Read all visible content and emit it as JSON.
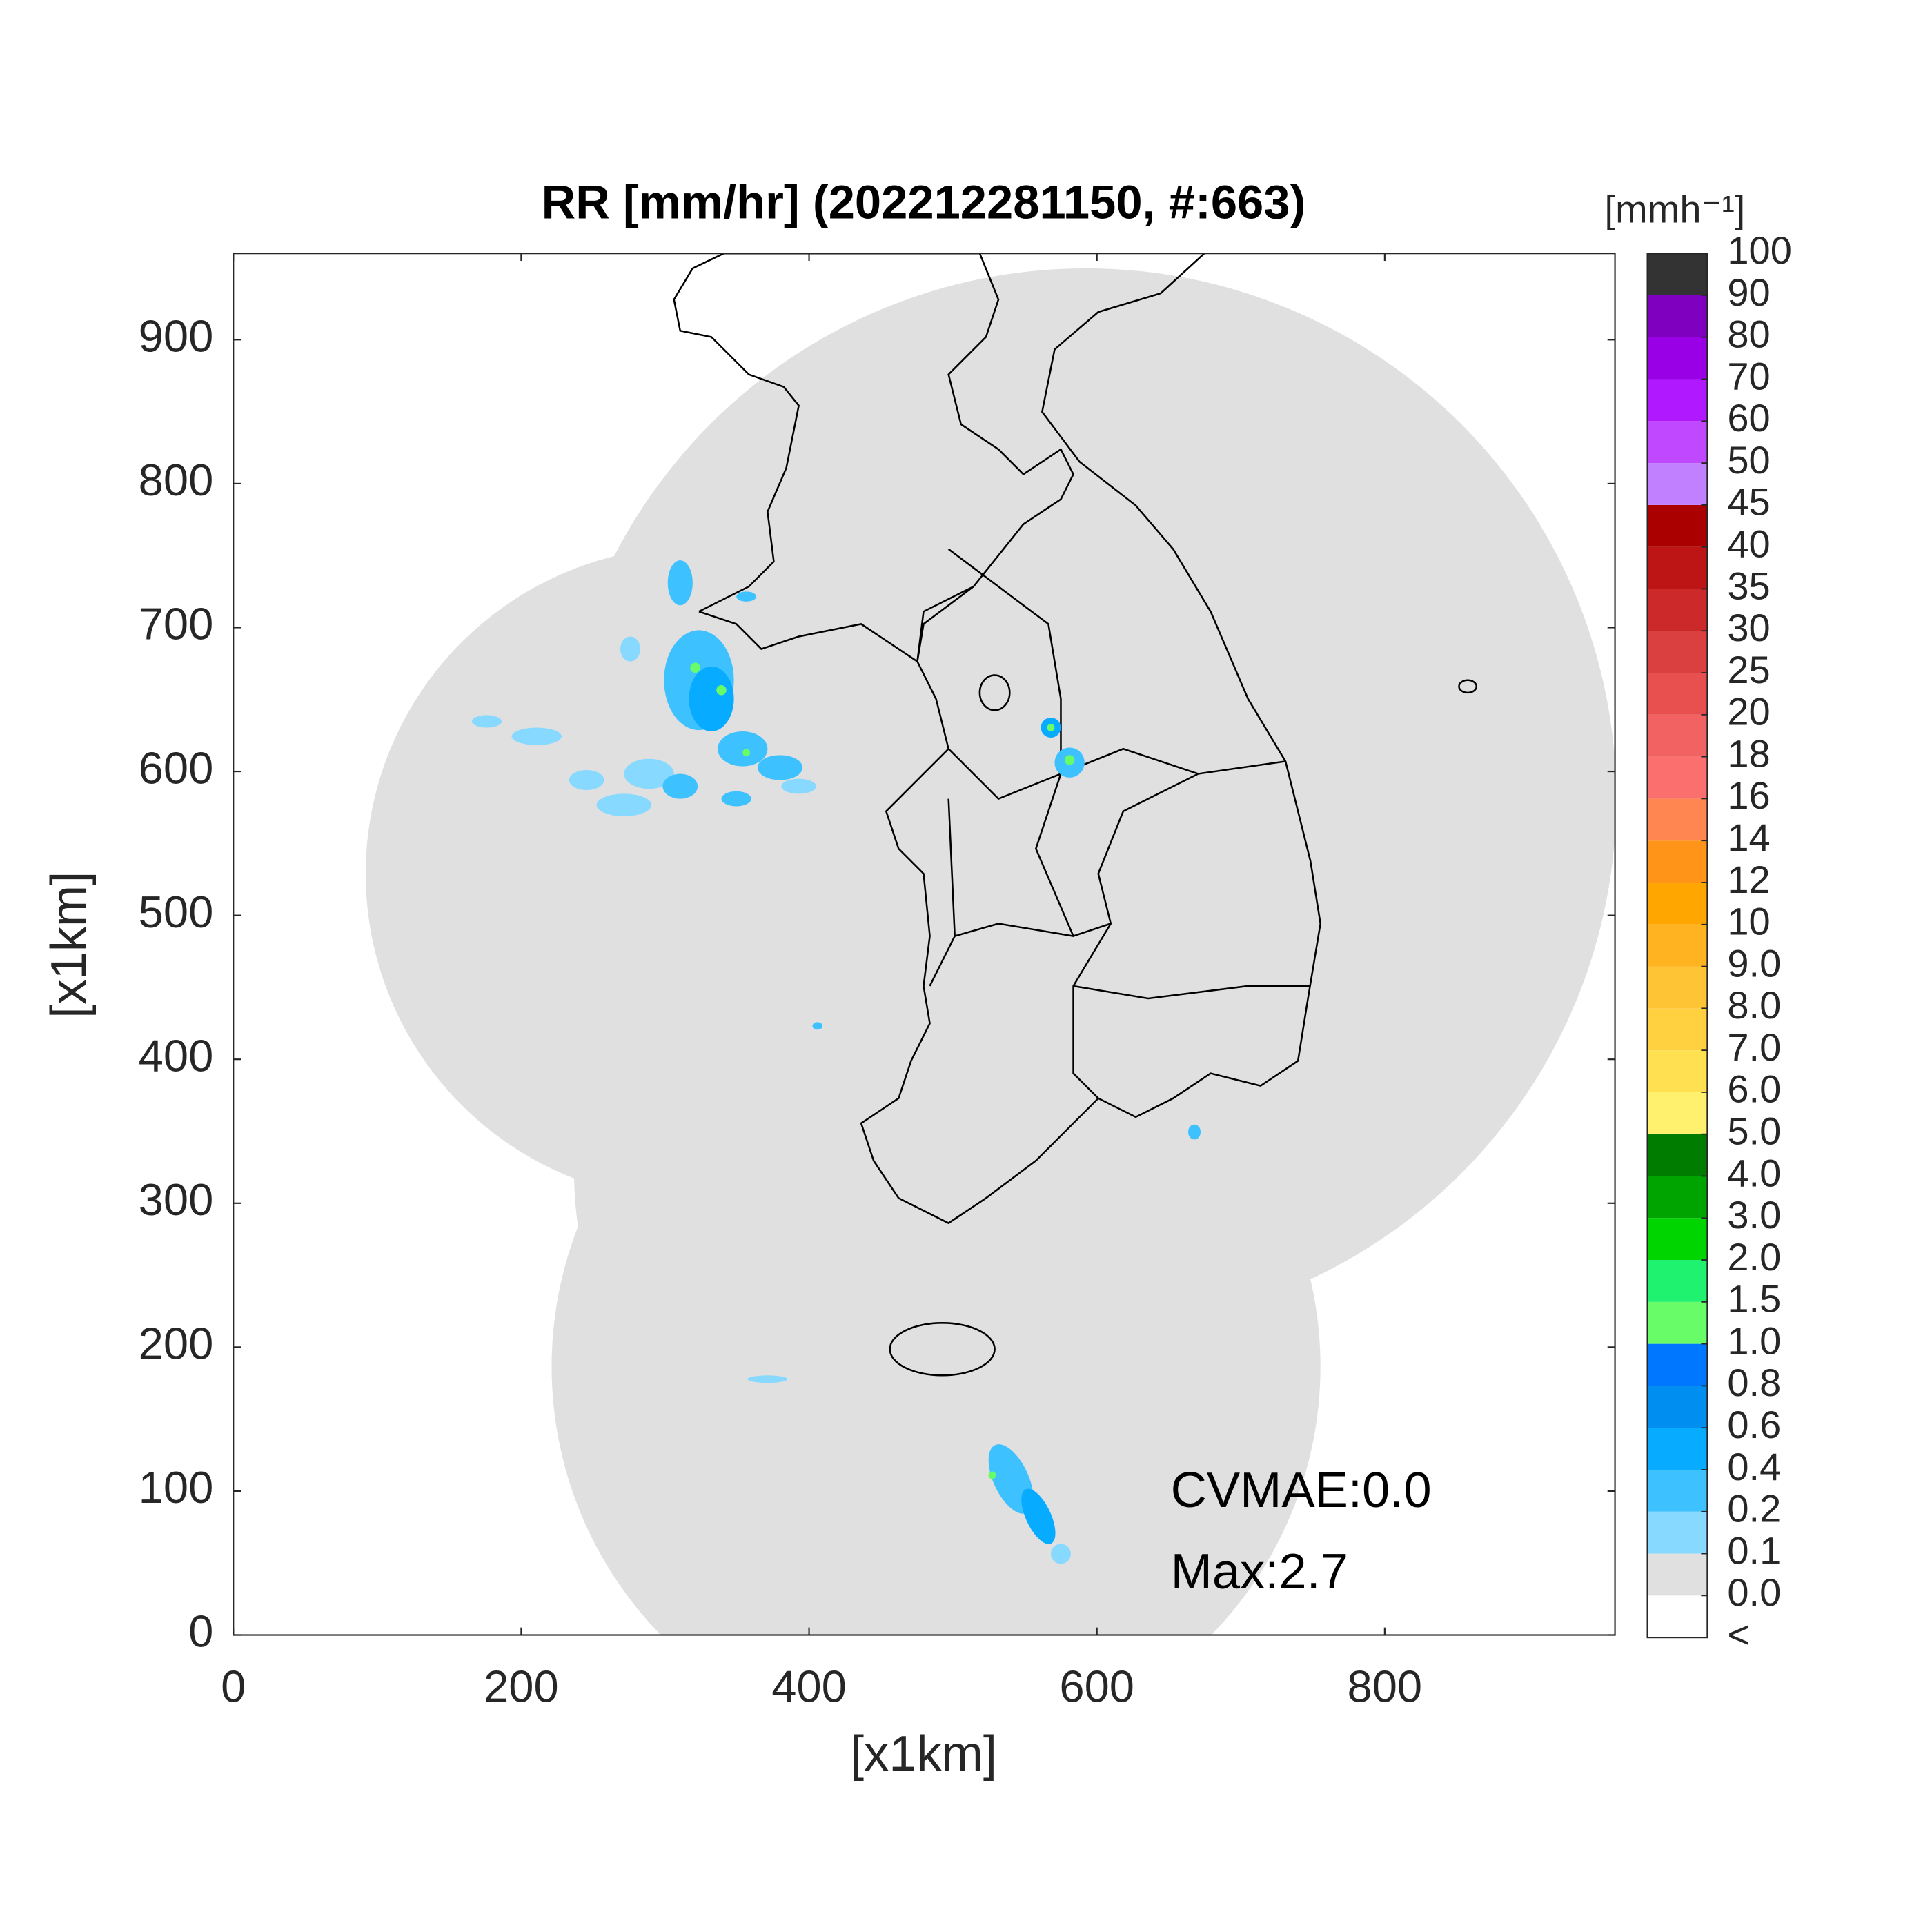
{
  "chart_data": {
    "type": "radar-map",
    "title": "RR [mm/hr] (202212281150, #:663)",
    "xlabel": "[x1km]",
    "ylabel": "[x1km]",
    "xlim": [
      0,
      960
    ],
    "ylim": [
      0,
      960
    ],
    "xticks": [
      0,
      200,
      400,
      600,
      800
    ],
    "yticks": [
      0,
      100,
      200,
      300,
      400,
      500,
      600,
      700,
      800,
      900
    ],
    "grid": false,
    "annotations": [
      "CVMAE:0.0",
      "Max:2.7"
    ],
    "colorbar": {
      "label": "[mmh⁻¹]",
      "ticks": [
        "<",
        {
          "value": 0,
          "label": "0.0"
        },
        0.1,
        0.2,
        0.4,
        0.6,
        0.8,
        {
          "value": 1,
          "label": "1.0"
        },
        1.5,
        {
          "value": 2,
          "label": "2.0"
        },
        {
          "value": 3,
          "label": "3.0"
        },
        {
          "value": 4,
          "label": "4.0"
        },
        {
          "value": 5,
          "label": "5.0"
        },
        {
          "value": 6,
          "label": "6.0"
        },
        {
          "value": 7,
          "label": "7.0"
        },
        {
          "value": 8,
          "label": "8.0"
        },
        {
          "value": 9,
          "label": "9.0"
        },
        10,
        12,
        14,
        16,
        18,
        20,
        25,
        30,
        35,
        40,
        45,
        50,
        60,
        70,
        80,
        90,
        100
      ],
      "colors": [
        "#ffffff",
        "#e0e0e0",
        "#87d9ff",
        "#3ec1ff",
        "#07abff",
        "#008ff0",
        "#0077ff",
        "#69fc69",
        "#1ef26e",
        "#00d500",
        "#00a400",
        "#007c00",
        "#fff06e",
        "#ffe050",
        "#ffd040",
        "#ffc336",
        "#ffb320",
        "#ffa600",
        "#ff9418",
        "#ff8650",
        "#fb6f6f",
        "#f26262",
        "#e85050",
        "#db4040",
        "#cc2a2a",
        "#bd1515",
        "#aa0000",
        "#c080ff",
        "#c048ff",
        "#b018ff",
        "#9900e6",
        "#7f00bf",
        "#333333"
      ]
    }
  }
}
